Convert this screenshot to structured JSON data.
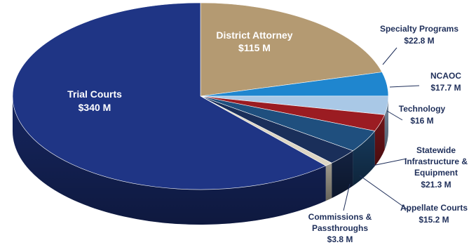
{
  "chart_data": {
    "type": "pie",
    "title": "",
    "slices": [
      {
        "name": "District Attorney",
        "value": 115,
        "label": "$115 M",
        "color": "#b49a72"
      },
      {
        "name": "Specialty Programs",
        "value": 22.8,
        "label": "$22.8 M",
        "color": "#1f86cf"
      },
      {
        "name": "NCAOC",
        "value": 17.7,
        "label": "$17.7 M",
        "color": "#a9c8e6"
      },
      {
        "name": "Technology",
        "value": 16,
        "label": "$16 M",
        "color": "#9b1c22"
      },
      {
        "name": "Statewide Infrastructure & Equipment",
        "value": 21.3,
        "label": "$21.3 M",
        "color": "#1f4f7e"
      },
      {
        "name": "Appellate Courts",
        "value": 15.2,
        "label": "$15.2 M",
        "color": "#1a2f5a"
      },
      {
        "name": "Commissions & Passthroughs",
        "value": 3.8,
        "label": "$3.8 M",
        "color": "#ddd6c4"
      },
      {
        "name": "Trial Courts",
        "value": 340,
        "label": "$340 M",
        "color": "#1f3585"
      }
    ]
  }
}
